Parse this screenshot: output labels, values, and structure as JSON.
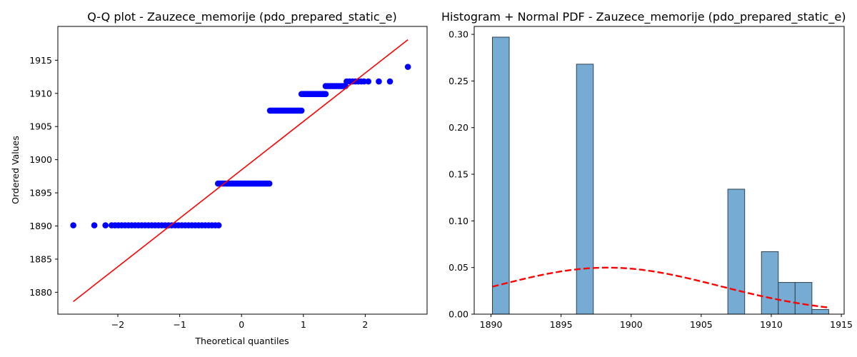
{
  "chart_data": [
    {
      "type": "scatter",
      "title": "Q-Q plot - Zauzece_memorije (pdo_prepared_static_e)",
      "xlabel": "Theoretical quantiles",
      "ylabel": "Ordered Values",
      "xlim": [
        -2.97,
        3.0
      ],
      "ylim": [
        1876.7,
        1920.1
      ],
      "xticks": [
        -2,
        -1,
        0,
        1,
        2
      ],
      "yticks": [
        1880,
        1885,
        1890,
        1895,
        1900,
        1905,
        1910,
        1915
      ],
      "grid": false,
      "point_color": "#0000ff",
      "line_color": "#ff0000",
      "groups": [
        {
          "y": 1890.1,
          "x_start": -2.72,
          "x_end": -0.37,
          "count": 36,
          "outliers": [
            -2.72,
            -2.38,
            -2.2
          ]
        },
        {
          "y": 1896.4,
          "x_start": -0.38,
          "x_end": 0.45,
          "count": 33
        },
        {
          "y": 1907.4,
          "x_start": 0.46,
          "x_end": 0.97,
          "count": 22
        },
        {
          "y": 1909.9,
          "x_start": 0.97,
          "x_end": 1.36,
          "count": 16
        },
        {
          "y": 1911.1,
          "x_start": 1.36,
          "x_end": 1.68,
          "count": 10
        },
        {
          "y": 1911.8,
          "x_start": 1.7,
          "x_end": 2.4,
          "count": 10,
          "tail": [
            2.05,
            2.22,
            2.4
          ]
        },
        {
          "y": 1914.0,
          "x_start": 2.69,
          "x_end": 2.69,
          "count": 1
        }
      ],
      "fit_line": {
        "x": [
          -2.72,
          2.69
        ],
        "y": [
          1878.6,
          1918.1
        ]
      }
    },
    {
      "type": "bar",
      "title": "Histogram + Normal PDF - Zauzece_memorije (pdo_prepared_static_e)",
      "xlim": [
        1888.8,
        1915.2
      ],
      "ylim": [
        0,
        0.3085
      ],
      "xticks": [
        1890,
        1895,
        1900,
        1905,
        1910,
        1915
      ],
      "yticks": [
        0.0,
        0.05,
        0.1,
        0.15,
        0.2,
        0.25,
        0.3
      ],
      "ytick_labels": [
        "0.00",
        "0.05",
        "0.10",
        "0.15",
        "0.20",
        "0.25",
        "0.30"
      ],
      "grid": false,
      "bar_color": "#76acd3",
      "bar_edge_color": "#304050",
      "pdf_color": "#ff0000",
      "bins": [
        {
          "x0": 1890.1,
          "x1": 1891.3,
          "density": 0.297
        },
        {
          "x0": 1896.1,
          "x1": 1897.3,
          "density": 0.268
        },
        {
          "x0": 1906.9,
          "x1": 1908.1,
          "density": 0.134
        },
        {
          "x0": 1909.3,
          "x1": 1910.5,
          "density": 0.067
        },
        {
          "x0": 1910.5,
          "x1": 1911.7,
          "density": 0.034
        },
        {
          "x0": 1911.7,
          "x1": 1912.9,
          "density": 0.034
        },
        {
          "x0": 1912.9,
          "x1": 1914.1,
          "density": 0.005
        }
      ],
      "normal_pdf": {
        "mean": 1898.3,
        "std": 8.0,
        "x_range": [
          1890.1,
          1914.1
        ]
      }
    }
  ]
}
